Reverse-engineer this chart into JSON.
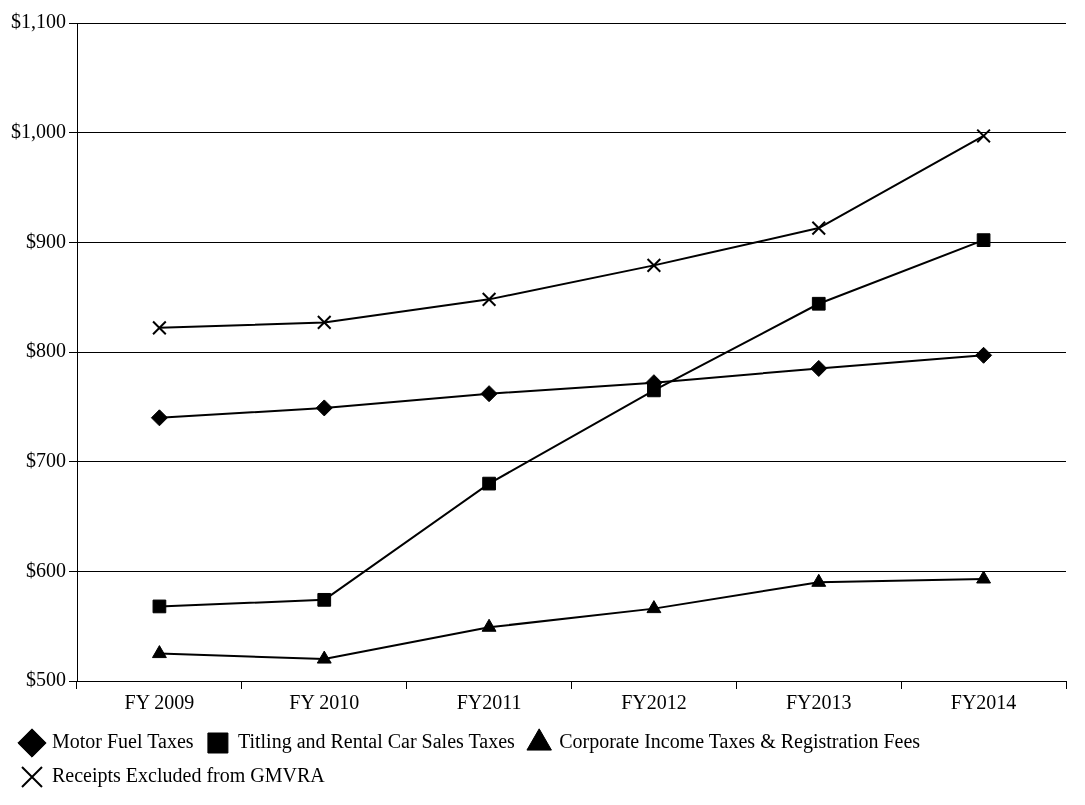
{
  "chart_data": {
    "type": "line",
    "categories": [
      "FY 2009",
      "FY 2010",
      "FY2011",
      "FY2012",
      "FY2013",
      "FY2014"
    ],
    "series": [
      {
        "name": "Motor Fuel Taxes",
        "color": "#000000",
        "marker": "diamond",
        "values": [
          740,
          749,
          762,
          772,
          785,
          797
        ]
      },
      {
        "name": "Titling and Rental Car Sales Taxes",
        "color": "#000000",
        "marker": "square",
        "values": [
          568,
          574,
          680,
          765,
          844,
          902
        ]
      },
      {
        "name": "Corporate Income Taxes & Registration Fees",
        "color": "#000000",
        "marker": "triangle",
        "values": [
          525,
          520,
          549,
          566,
          590,
          593
        ]
      },
      {
        "name": "Receipts Excluded from GMVRA",
        "color": "#000000",
        "marker": "cross",
        "values": [
          822,
          827,
          848,
          879,
          913,
          997
        ]
      }
    ],
    "ylim": [
      500,
      1100
    ],
    "yticks": [
      {
        "value": 500,
        "label": "$500"
      },
      {
        "value": 600,
        "label": "$600"
      },
      {
        "value": 700,
        "label": "$700"
      },
      {
        "value": 800,
        "label": "$800"
      },
      {
        "value": 900,
        "label": "$900"
      },
      {
        "value": 1000,
        "label": "$1,000"
      },
      {
        "value": 1100,
        "label": "$1,100"
      }
    ],
    "grid": "y",
    "legend": "bottom",
    "line_style": "solid"
  }
}
